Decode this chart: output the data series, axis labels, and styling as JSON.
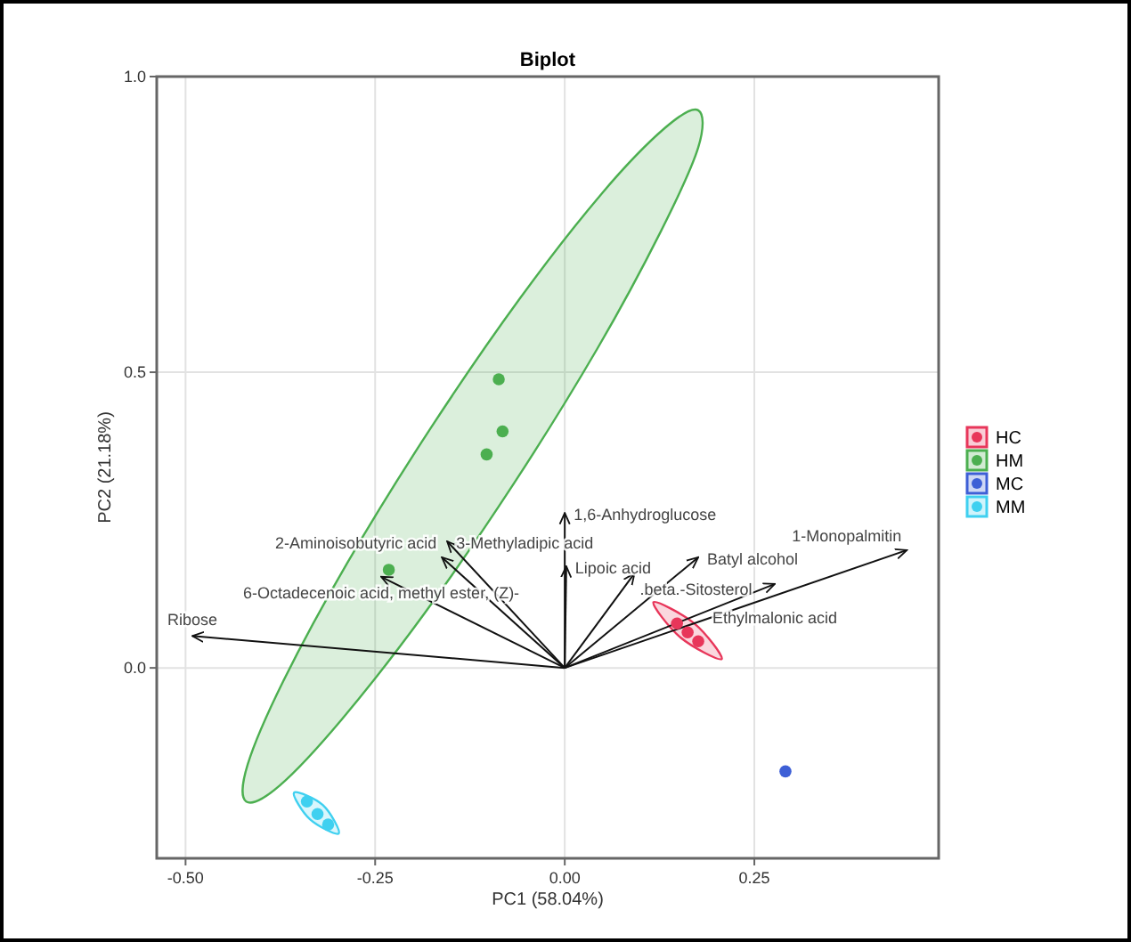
{
  "chart_data": {
    "type": "scatter",
    "title": "Biplot",
    "xlabel": "PC1 (58.04%)",
    "ylabel": "PC2 (21.18%)",
    "xlim": [
      -0.538,
      0.493
    ],
    "ylim": [
      -0.322,
      1.0
    ],
    "xticks": [
      {
        "value": -0.5,
        "label": "-0.50"
      },
      {
        "value": -0.25,
        "label": "-0.25"
      },
      {
        "value": 0,
        "label": "0.00"
      },
      {
        "value": 0.25,
        "label": "0.25"
      }
    ],
    "yticks": [
      {
        "value": 0,
        "label": "0.0"
      },
      {
        "value": 0.5,
        "label": "0.5"
      },
      {
        "value": 1.0,
        "label": "1.0"
      }
    ],
    "grid": true,
    "legend": "right",
    "series": [
      {
        "type": "area",
        "color": "#4caf50",
        "x": [
          0.176,
          0.176,
          0.127,
          0.043,
          -0.067,
          -0.185,
          -0.294,
          -0.376,
          -0.42,
          -0.418,
          -0.371,
          -0.287,
          -0.177,
          -0.059,
          0.05,
          0.132
        ],
        "values": [
          0.943,
          0.88,
          0.739,
          0.54,
          0.312,
          0.092,
          -0.087,
          -0.199,
          -0.226,
          -0.163,
          -0.022,
          0.177,
          0.405,
          0.625,
          0.804,
          0.913
        ]
      },
      {
        "type": "area",
        "color": "#e8365a",
        "x": [
          0.117,
          0.171,
          0.207,
          0.153
        ],
        "values": [
          0.111,
          0.075,
          0.015,
          0.051
        ]
      },
      {
        "type": "area",
        "color": "#3fd0f0",
        "x": [
          -0.357,
          -0.319,
          -0.298,
          -0.336
        ],
        "values": [
          -0.211,
          -0.232,
          -0.28,
          -0.256
        ]
      },
      {
        "type": "line",
        "name": "Ribose",
        "color": "#111111",
        "x": [
          0,
          -0.491
        ],
        "values": [
          0,
          0.054
        ]
      },
      {
        "type": "line",
        "name": "6-Octadecenoic acid, methyl ester, (Z)-",
        "color": "#111111",
        "x": [
          0,
          -0.242
        ],
        "values": [
          0,
          0.154
        ]
      },
      {
        "type": "line",
        "name": "2-Aminoisobutyric acid",
        "color": "#111111",
        "x": [
          0,
          -0.162
        ],
        "values": [
          0,
          0.187
        ]
      },
      {
        "type": "line",
        "name": "3-Methyladipic acid",
        "color": "#111111",
        "x": [
          0,
          -0.155
        ],
        "values": [
          0,
          0.214
        ]
      },
      {
        "type": "line",
        "name": "1,6-Anhydroglucose",
        "color": "#111111",
        "x": [
          0,
          0
        ],
        "values": [
          0,
          0.262
        ]
      },
      {
        "type": "line",
        "name": "Lipoic acid",
        "color": "#111111",
        "x": [
          0,
          0.002
        ],
        "values": [
          0,
          0.172
        ]
      },
      {
        "type": "line",
        "name": ".beta.-Sitosterol",
        "color": "#111111",
        "x": [
          0,
          0.092
        ],
        "values": [
          0,
          0.16
        ]
      },
      {
        "type": "line",
        "name": "Batyl alcohol",
        "color": "#111111",
        "x": [
          0,
          0.176
        ],
        "values": [
          0,
          0.187
        ]
      },
      {
        "type": "line",
        "name": "Ethylmalonic acid",
        "color": "#111111",
        "x": [
          0,
          0.277
        ],
        "values": [
          0,
          0.142
        ]
      },
      {
        "type": "line",
        "name": "1-Monopalmitin",
        "color": "#111111",
        "x": [
          0,
          0.451
        ],
        "values": [
          0,
          0.199
        ]
      },
      {
        "name": "HC",
        "marker": "circle",
        "color": "#e8365a",
        "x": [
          0.148,
          0.162,
          0.176
        ],
        "values": [
          0.075,
          0.06,
          0.045
        ]
      },
      {
        "name": "HM",
        "marker": "circle",
        "color": "#4caf50",
        "x": [
          -0.087,
          -0.082,
          -0.103,
          -0.232
        ],
        "values": [
          0.488,
          0.4,
          0.361,
          0.166
        ]
      },
      {
        "name": "MC",
        "marker": "circle",
        "color": "#3d5fd6",
        "x": [
          0.291
        ],
        "values": [
          -0.175
        ]
      },
      {
        "name": "MM",
        "marker": "circle",
        "color": "#3fd0f0",
        "x": [
          -0.34,
          -0.326,
          -0.312
        ],
        "values": [
          -0.226,
          -0.247,
          -0.265
        ]
      }
    ]
  }
}
